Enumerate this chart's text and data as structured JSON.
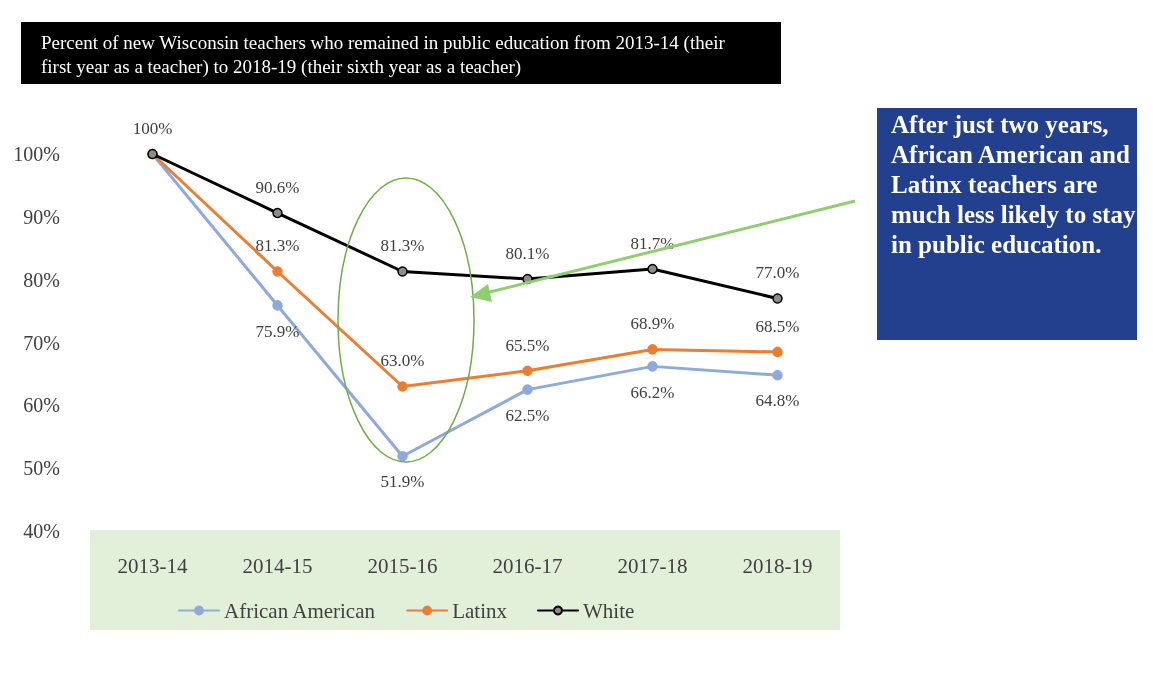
{
  "chart_data": {
    "type": "line",
    "title": "Percent of new Wisconsin teachers who remained in public education from 2013-14 (their first year as a teacher) to 2018-19 (their sixth year as a teacher)",
    "categories": [
      "2013-14",
      "2014-15",
      "2015-16",
      "2016-17",
      "2017-18",
      "2018-19"
    ],
    "series": [
      {
        "name": "African American",
        "color": "#8eaadb",
        "values": [
          100,
          75.9,
          51.9,
          62.5,
          66.2,
          64.8
        ],
        "value_labels": [
          null,
          "75.9%",
          "51.9%",
          "62.5%",
          "66.2%",
          "64.8%"
        ]
      },
      {
        "name": "Latinx",
        "color": "#ed7d31",
        "values": [
          100,
          81.3,
          63.0,
          65.5,
          68.9,
          68.5
        ],
        "value_labels": [
          null,
          "81.3%",
          "63.0%",
          "65.5%",
          "68.9%",
          "68.5%"
        ]
      },
      {
        "name": "White",
        "color": "#000000",
        "values": [
          100,
          90.6,
          81.3,
          80.1,
          81.7,
          77.0
        ],
        "value_labels": [
          "100%",
          "90.6%",
          "81.3%",
          "80.1%",
          "81.7%",
          "77.0%"
        ]
      }
    ],
    "ylim": [
      40,
      100
    ],
    "yticks": [
      {
        "value": 40,
        "label": "40%"
      },
      {
        "value": 50,
        "label": "50%"
      },
      {
        "value": 60,
        "label": "60%"
      },
      {
        "value": 70,
        "label": "70%"
      },
      {
        "value": 80,
        "label": "80%"
      },
      {
        "value": 90,
        "label": "90%"
      },
      {
        "value": 100,
        "label": "100%"
      }
    ],
    "grid": false,
    "legend": "bottom",
    "marker": "circle",
    "line_style": "solid",
    "annotations": [
      "After just two years, African American and Latinx teachers are much less likely to stay in public education."
    ]
  }
}
